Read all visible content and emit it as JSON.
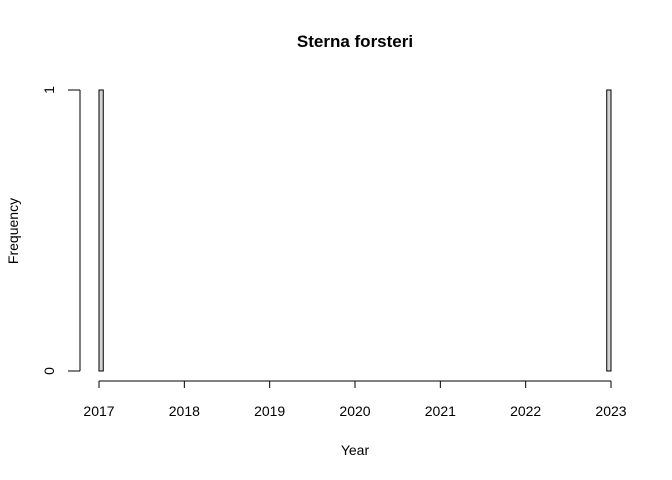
{
  "chart_data": {
    "type": "bar",
    "title": "Sterna forsteri",
    "xlabel": "Year",
    "ylabel": "Frequency",
    "xlim": [
      2017,
      2023
    ],
    "ylim": [
      0,
      1
    ],
    "x_ticks": [
      "2017",
      "2018",
      "2019",
      "2020",
      "2021",
      "2022",
      "2023"
    ],
    "y_ticks": [
      "0",
      "1"
    ],
    "bin_width_years": 0.05,
    "bin_start": 2017,
    "nonzero_bins": [
      {
        "x_start": 2017.0,
        "x_end": 2017.05,
        "value": 1
      },
      {
        "x_start": 2022.95,
        "x_end": 2023.0,
        "value": 1
      }
    ],
    "bar_color": "#d3d3d3",
    "grid": false,
    "legend": "none"
  }
}
